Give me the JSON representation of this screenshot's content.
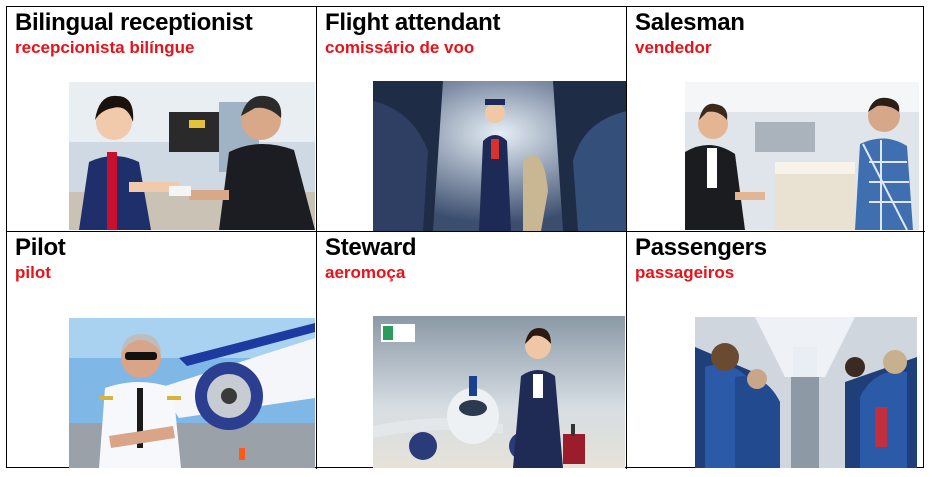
{
  "cards": [
    {
      "title": "Bilingual receptionist",
      "subtitle": "recepcionista bilíngue",
      "photo": "receptionist-photo"
    },
    {
      "title": "Flight attendant",
      "subtitle": "comissário de voo",
      "photo": "flight-attendant-photo"
    },
    {
      "title": "Salesman",
      "subtitle": "vendedor",
      "photo": "salesman-photo"
    },
    {
      "title": "Pilot",
      "subtitle": "pilot",
      "photo": "pilot-photo"
    },
    {
      "title": "Steward",
      "subtitle": "aeromoça",
      "photo": "steward-photo"
    },
    {
      "title": "Passengers",
      "subtitle": "passageiros",
      "photo": "passengers-photo"
    }
  ],
  "colors": {
    "subtitle": "#e8121a",
    "title": "#000000",
    "border": "#000000"
  }
}
